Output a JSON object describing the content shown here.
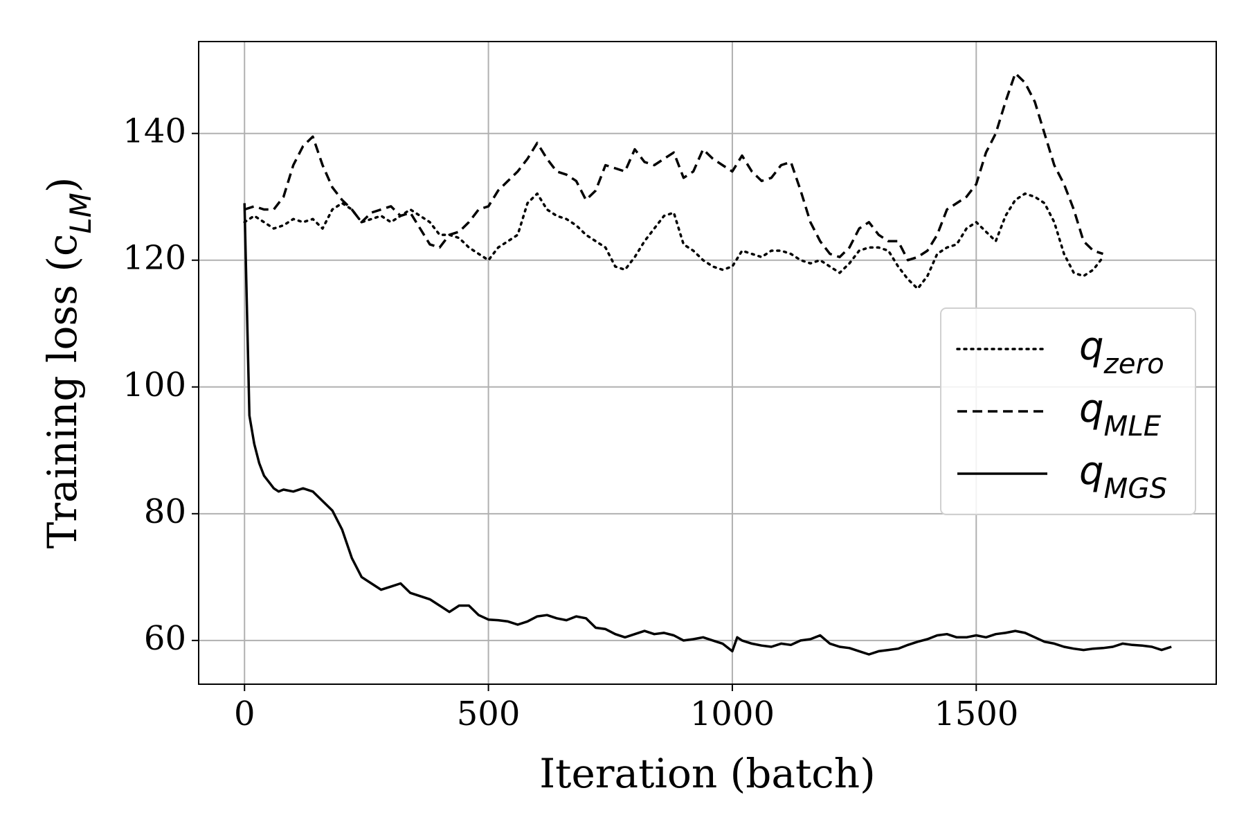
{
  "chart_data": {
    "type": "line",
    "xlabel": "Iteration (batch)",
    "ylabel": "Training loss (c_{LM})",
    "xlim": [
      -94,
      1992
    ],
    "xticks": [
      0,
      500,
      1000,
      1500
    ],
    "ylim": [
      53.1,
      154.5
    ],
    "yticks": [
      60,
      80,
      100,
      120,
      140
    ],
    "grid": true,
    "legend": "center right",
    "series": [
      {
        "name": "q_{zero}",
        "color": "#000000",
        "linestyle": "dotted",
        "x": [
          0,
          20,
          40,
          60,
          80,
          100,
          120,
          140,
          160,
          180,
          200,
          220,
          240,
          260,
          280,
          300,
          320,
          340,
          360,
          380,
          400,
          420,
          440,
          460,
          480,
          500,
          520,
          540,
          560,
          580,
          600,
          620,
          640,
          660,
          680,
          700,
          720,
          740,
          760,
          780,
          800,
          820,
          840,
          860,
          880,
          900,
          920,
          940,
          960,
          980,
          1000,
          1020,
          1040,
          1060,
          1080,
          1100,
          1120,
          1140,
          1160,
          1180,
          1200,
          1220,
          1240,
          1260,
          1280,
          1300,
          1320,
          1340,
          1360,
          1380,
          1400,
          1420,
          1440,
          1460,
          1480,
          1500,
          1520,
          1540,
          1560,
          1580,
          1600,
          1620,
          1640,
          1660,
          1680,
          1700,
          1720,
          1740,
          1760
        ],
        "values": [
          126,
          127,
          126,
          125,
          125.5,
          126.5,
          126,
          126.5,
          125,
          128,
          129,
          128,
          126,
          126.5,
          127,
          126,
          127,
          128,
          127,
          126,
          124,
          124,
          123.5,
          122,
          121,
          120,
          122,
          123,
          124,
          129,
          130.5,
          128,
          127,
          126.5,
          125.5,
          124,
          123,
          122,
          119,
          118.5,
          120.5,
          123,
          125,
          127,
          127.5,
          122.5,
          121.5,
          120,
          119,
          118.5,
          119,
          121.5,
          121,
          120.5,
          121.5,
          121.5,
          121,
          120,
          119.5,
          120,
          119,
          118,
          119.5,
          121.5,
          122,
          122,
          121.5,
          119,
          117,
          115.5,
          117.5,
          121,
          122,
          122.5,
          125,
          126,
          124.5,
          123,
          127,
          129.5,
          130.5,
          130,
          129,
          126,
          121,
          118,
          117.5,
          118.5,
          120.5
        ]
      },
      {
        "name": "q_{MLE}",
        "color": "#000000",
        "linestyle": "dashed",
        "x": [
          0,
          20,
          40,
          60,
          80,
          100,
          120,
          140,
          160,
          180,
          200,
          220,
          240,
          260,
          280,
          300,
          320,
          340,
          360,
          380,
          400,
          420,
          440,
          460,
          480,
          500,
          520,
          540,
          560,
          580,
          600,
          620,
          640,
          660,
          680,
          700,
          720,
          740,
          760,
          780,
          800,
          820,
          840,
          860,
          880,
          900,
          920,
          940,
          960,
          980,
          1000,
          1020,
          1040,
          1060,
          1080,
          1100,
          1120,
          1140,
          1160,
          1180,
          1200,
          1220,
          1240,
          1260,
          1280,
          1300,
          1320,
          1340,
          1360,
          1380,
          1400,
          1420,
          1440,
          1460,
          1480,
          1500,
          1520,
          1540,
          1560,
          1580,
          1600,
          1620,
          1640,
          1660,
          1680,
          1700,
          1720,
          1740,
          1760
        ],
        "values": [
          128,
          128.5,
          128,
          128,
          130,
          135,
          138,
          139.5,
          135,
          131.5,
          129.5,
          128,
          126,
          127.5,
          128,
          128.5,
          127,
          127.5,
          125,
          122.5,
          122,
          124,
          124.5,
          126,
          128,
          128.5,
          131,
          132.5,
          134,
          136,
          138.5,
          136,
          134,
          133.5,
          132.5,
          129.5,
          131,
          135,
          134.5,
          134,
          137.5,
          135.5,
          135,
          136,
          137,
          133,
          134,
          137.5,
          136,
          135,
          134,
          136.5,
          134,
          132.5,
          133,
          135,
          135.5,
          131,
          126,
          123,
          121,
          120.5,
          122,
          125,
          126,
          124,
          123,
          123,
          120,
          120.5,
          121.5,
          124,
          128,
          129,
          130,
          132,
          137,
          140,
          145,
          149.5,
          148,
          145,
          140,
          135,
          132,
          128,
          123,
          121.5,
          121
        ]
      },
      {
        "name": "q_{MGS}",
        "color": "#000000",
        "linestyle": "solid",
        "x": [
          0,
          10,
          20,
          30,
          40,
          50,
          60,
          70,
          80,
          100,
          120,
          140,
          160,
          180,
          200,
          220,
          240,
          260,
          280,
          300,
          320,
          340,
          360,
          380,
          400,
          420,
          440,
          460,
          480,
          500,
          520,
          540,
          560,
          580,
          600,
          620,
          640,
          660,
          680,
          700,
          720,
          740,
          760,
          780,
          800,
          820,
          840,
          860,
          880,
          900,
          920,
          940,
          960,
          980,
          1000,
          1010,
          1020,
          1040,
          1060,
          1080,
          1100,
          1120,
          1140,
          1160,
          1180,
          1200,
          1220,
          1240,
          1260,
          1280,
          1300,
          1320,
          1340,
          1360,
          1380,
          1400,
          1420,
          1440,
          1460,
          1480,
          1500,
          1520,
          1540,
          1560,
          1580,
          1600,
          1620,
          1640,
          1660,
          1680,
          1700,
          1720,
          1740,
          1760,
          1780,
          1800,
          1820,
          1840,
          1860,
          1880,
          1900
        ],
        "values": [
          129,
          95.5,
          91,
          88,
          86,
          85,
          84,
          83.5,
          83.8,
          83.5,
          84,
          83.5,
          82,
          80.5,
          77.5,
          73,
          70,
          69,
          68,
          68.5,
          69,
          67.5,
          67,
          66.5,
          65.5,
          64.5,
          65.5,
          65.5,
          64,
          63.3,
          63.2,
          63,
          62.5,
          63,
          63.8,
          64,
          63.5,
          63.2,
          63.8,
          63.5,
          62,
          61.8,
          61,
          60.5,
          61,
          61.5,
          61,
          61.2,
          60.8,
          60,
          60.2,
          60.5,
          60,
          59.5,
          58.3,
          60.5,
          60,
          59.5,
          59.2,
          59,
          59.5,
          59.3,
          60,
          60.2,
          60.8,
          59.5,
          59,
          58.8,
          58.3,
          57.8,
          58.3,
          58.5,
          58.7,
          59.3,
          59.8,
          60.2,
          60.8,
          61,
          60.5,
          60.5,
          60.8,
          60.5,
          61,
          61.2,
          61.5,
          61.2,
          60.5,
          59.8,
          59.5,
          59,
          58.7,
          58.5,
          58.7,
          58.8,
          59,
          59.5,
          59.3,
          59.2,
          59,
          58.5,
          59
        ]
      }
    ]
  }
}
